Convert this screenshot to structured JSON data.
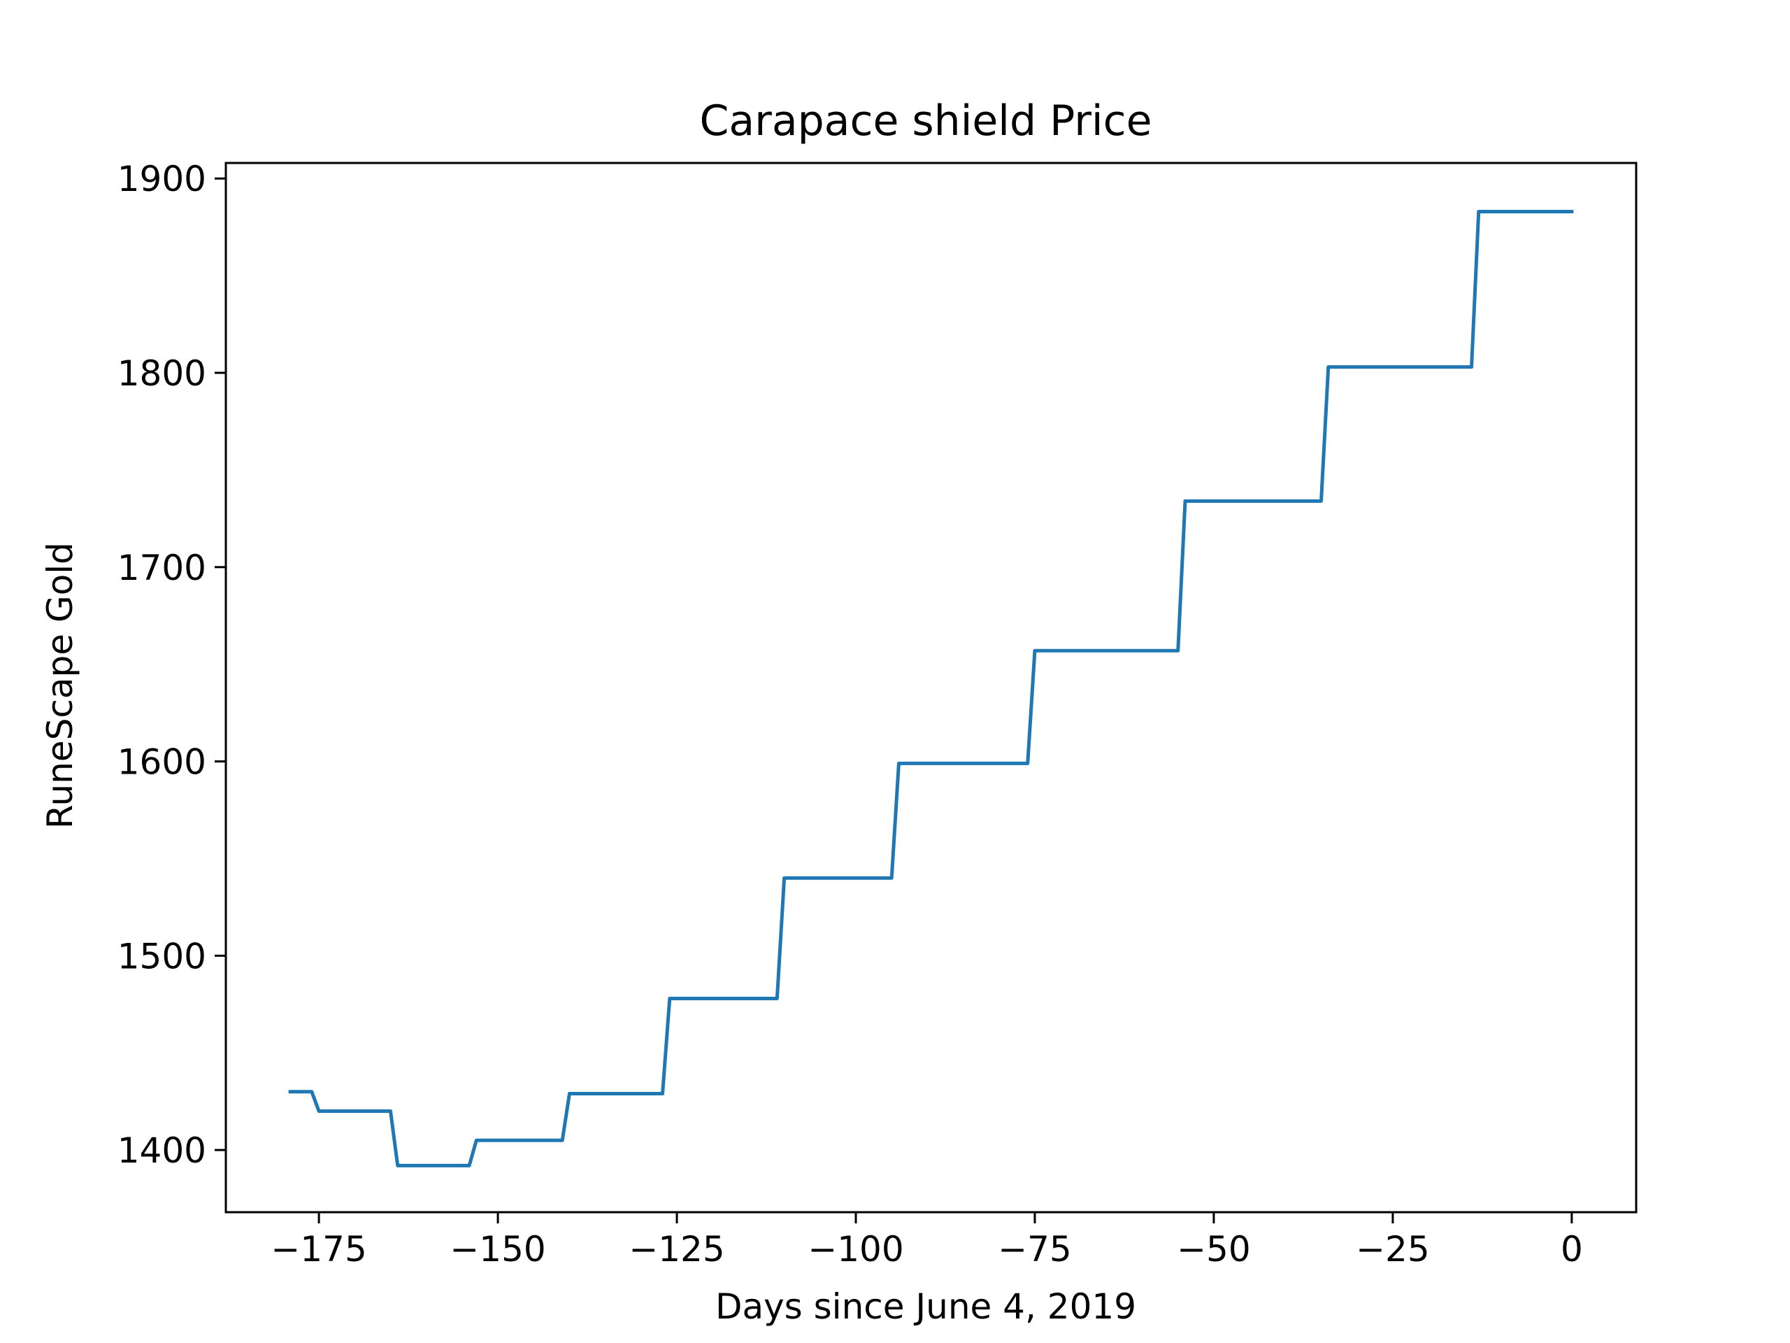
{
  "chart_data": {
    "type": "line",
    "title": "Carapace shield Price",
    "xlabel": "Days since June 4, 2019",
    "ylabel": "RuneScape Gold",
    "xlim": [
      -188,
      9
    ],
    "ylim": [
      1368,
      1908
    ],
    "x_ticks": [
      -175,
      -150,
      -125,
      -100,
      -75,
      -50,
      -25,
      0
    ],
    "x_tick_labels": [
      "−175",
      "−150",
      "−125",
      "−100",
      "−75",
      "−50",
      "−25",
      "0"
    ],
    "y_ticks": [
      1400,
      1500,
      1600,
      1700,
      1800,
      1900
    ],
    "y_tick_labels": [
      "1400",
      "1500",
      "1600",
      "1700",
      "1800",
      "1900"
    ],
    "grid": false,
    "line_color": "#1f77b4",
    "series": [
      {
        "x": [
          -179,
          -176,
          -175,
          -165,
          -164,
          -154,
          -153,
          -141,
          -140,
          -127,
          -126,
          -111,
          -110,
          -95,
          -94,
          -76,
          -75,
          -55,
          -54,
          -35,
          -34,
          -14,
          -13,
          0
        ],
        "y": [
          1430,
          1430,
          1420,
          1420,
          1392,
          1392,
          1405,
          1405,
          1429,
          1429,
          1478,
          1478,
          1540,
          1540,
          1599,
          1599,
          1657,
          1657,
          1734,
          1734,
          1803,
          1803,
          1883,
          1883
        ]
      }
    ]
  }
}
